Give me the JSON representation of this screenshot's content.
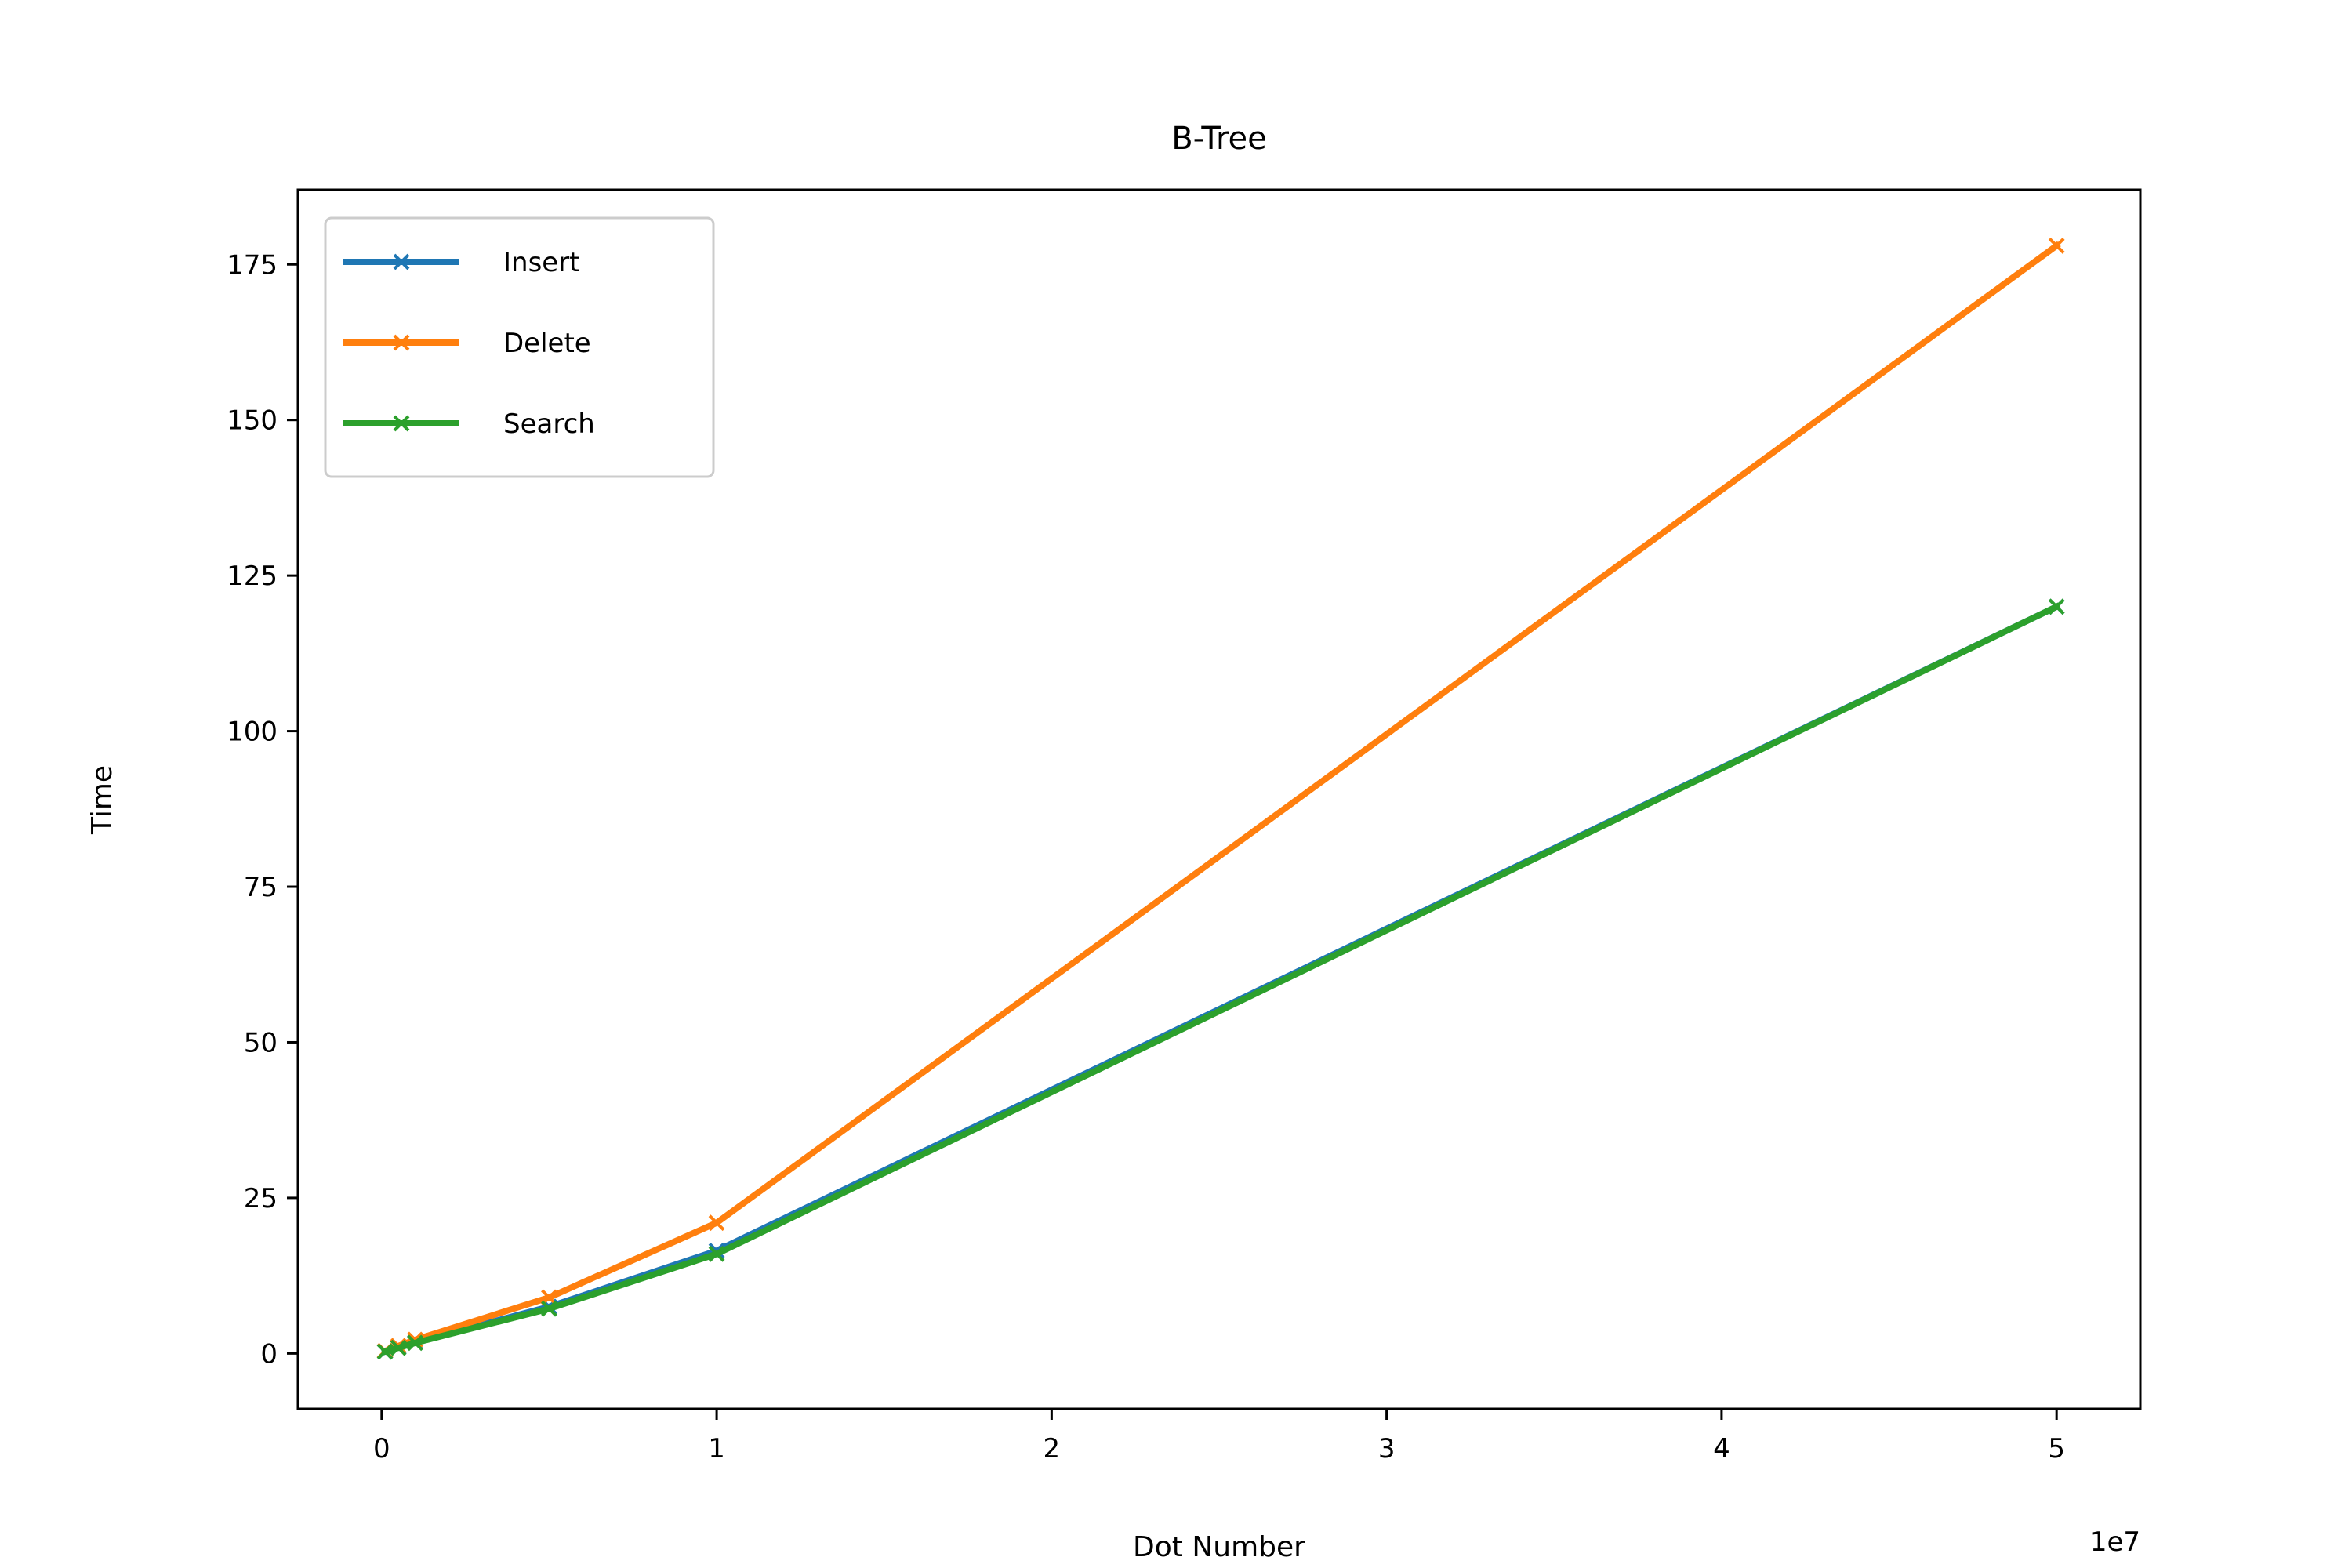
{
  "chart_data": {
    "type": "line",
    "title": "B-Tree",
    "xlabel": "Dot Number",
    "ylabel": "Time",
    "x_scale_label": "1e7",
    "x": [
      100000,
      500000,
      1000000,
      5000000,
      10000000,
      50000000
    ],
    "series": [
      {
        "name": "Insert",
        "color": "#1f77b4",
        "marker": "x",
        "values": [
          0.3,
          1.0,
          1.8,
          7.5,
          16.5,
          120.0
        ]
      },
      {
        "name": "Delete",
        "color": "#ff7f0e",
        "marker": "x",
        "values": [
          0.4,
          1.2,
          2.2,
          9.0,
          21.0,
          178.0
        ]
      },
      {
        "name": "Search",
        "color": "#2ca02c",
        "marker": "x",
        "values": [
          0.3,
          0.9,
          1.7,
          7.2,
          16.0,
          120.0
        ]
      }
    ],
    "xlim": [
      -2500000,
      52500000
    ],
    "ylim": [
      -8.9,
      187
    ],
    "xticks": [
      0,
      10000000,
      20000000,
      30000000,
      40000000,
      50000000
    ],
    "xtick_labels": [
      "0",
      "1",
      "2",
      "3",
      "4",
      "5"
    ],
    "yticks": [
      0,
      25,
      50,
      75,
      100,
      125,
      150,
      175
    ],
    "ytick_labels": [
      "0",
      "25",
      "50",
      "75",
      "100",
      "125",
      "150",
      "175"
    ],
    "grid": false,
    "legend_position": "top-left"
  }
}
